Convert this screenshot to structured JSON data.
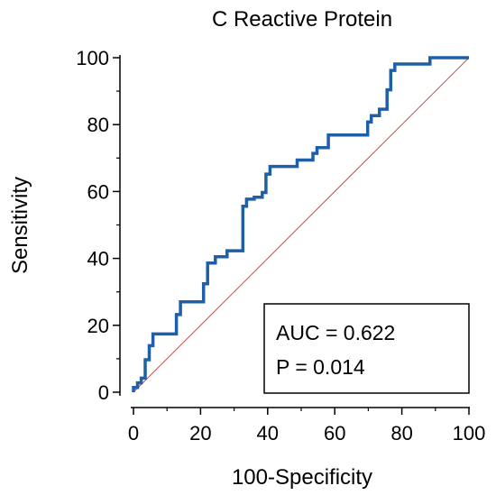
{
  "chart_data": {
    "type": "line",
    "title": "C Reactive Protein",
    "xlabel": "100-Specificity",
    "ylabel": "Sensitivity",
    "xlim": [
      0,
      100
    ],
    "ylim": [
      0,
      100
    ],
    "xticks": [
      "0",
      "20",
      "40",
      "60",
      "80",
      "100"
    ],
    "yticks": [
      "0",
      "20",
      "40",
      "60",
      "80",
      "100"
    ],
    "grid": false,
    "colors": {
      "roc": "#1f5fa8",
      "reference": "#c0504d"
    },
    "series": [
      {
        "x": [
          0,
          0,
          1.2,
          1.2,
          2.3,
          2.3,
          3.5,
          3.5,
          4.7,
          4.7,
          5.8,
          5.8,
          12.8,
          12.8,
          14,
          14,
          20.9,
          20.9,
          22.1,
          22.1,
          24.4,
          24.4,
          27.9,
          27.9,
          32.6,
          32.6,
          33.7,
          33.7,
          36,
          36,
          38.4,
          38.4,
          39.5,
          39.5,
          40.7,
          40.7,
          48.8,
          48.8,
          53.5,
          53.5,
          54.7,
          54.7,
          58.1,
          58.1,
          69.8,
          69.8,
          70.9,
          70.9,
          73.3,
          73.3,
          75.6,
          75.6,
          76.7,
          76.7,
          77.9,
          77.9,
          80.2,
          80.2,
          84.9,
          84.9,
          88.4,
          88.4,
          100
        ],
        "y": [
          0,
          1.4,
          1.4,
          2.8,
          2.8,
          4.2,
          4.2,
          9.7,
          9.7,
          13.9,
          13.9,
          17.4,
          17.4,
          23.2,
          23.2,
          27,
          27,
          32.4,
          32.4,
          38.6,
          38.6,
          40.5,
          40.5,
          42.3,
          42.3,
          55.6,
          55.6,
          57.7,
          57.7,
          58.3,
          58.3,
          59.7,
          59.7,
          65.2,
          65.2,
          67.5,
          67.5,
          69.4,
          69.4,
          71.4,
          71.4,
          73.1,
          73.1,
          76.9,
          76.9,
          80.8,
          80.8,
          82.7,
          82.7,
          84.6,
          84.6,
          90.4,
          90.4,
          96.2,
          96.2,
          98.1,
          98.1,
          98.1,
          98.1,
          98.1,
          98.1,
          100,
          100
        ]
      },
      {
        "x": [
          0,
          100
        ],
        "y": [
          0,
          100
        ]
      }
    ],
    "annotations": {
      "auc": "AUC = 0.622",
      "p": "P = 0.014"
    }
  }
}
